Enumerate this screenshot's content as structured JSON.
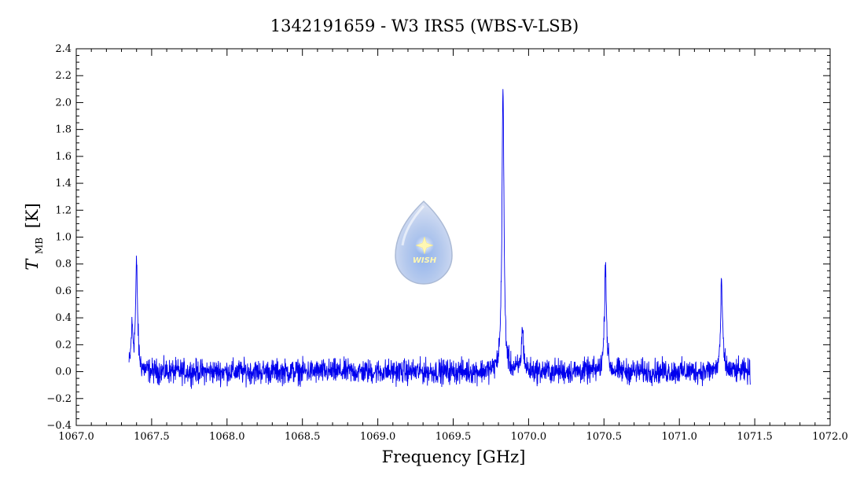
{
  "chart_data": {
    "type": "line",
    "title": "1342191659 - W3 IRS5 (WBS-V-LSB)",
    "xlabel": "Frequency [GHz]",
    "ylabel_main": "T",
    "ylabel_sub": "MB",
    "ylabel_unit": "[K]",
    "xlim": [
      1067.0,
      1072.0
    ],
    "ylim": [
      -0.4,
      2.4
    ],
    "x_ticks": [
      "1067.0",
      "1067.5",
      "1068.0",
      "1068.5",
      "1069.0",
      "1069.5",
      "1070.0",
      "1070.5",
      "1071.0",
      "1071.5",
      "1072.0"
    ],
    "y_ticks": [
      "−0.4",
      "−0.2",
      "0.0",
      "0.2",
      "0.4",
      "0.6",
      "0.8",
      "1.0",
      "1.2",
      "1.4",
      "1.6",
      "1.8",
      "2.0",
      "2.2",
      "2.4"
    ],
    "grid": false,
    "series": [
      {
        "color": "#0000ee",
        "x_range": [
          1067.35,
          1071.47
        ],
        "noise_rms": 0.045,
        "peaks": [
          {
            "x": 1067.4,
            "y": 0.78
          },
          {
            "x": 1067.37,
            "y": 0.3
          },
          {
            "x": 1069.83,
            "y": 2.1
          },
          {
            "x": 1069.96,
            "y": 0.32
          },
          {
            "x": 1070.51,
            "y": 0.8
          },
          {
            "x": 1071.28,
            "y": 0.64
          }
        ]
      }
    ],
    "logo": {
      "text": "WISH"
    }
  }
}
